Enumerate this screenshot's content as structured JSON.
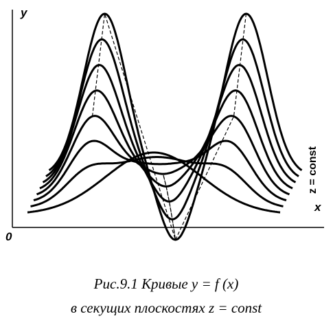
{
  "axes": {
    "y_label": "y",
    "x_label": "x",
    "origin_label": "0",
    "z_label": "z = const"
  },
  "caption": {
    "line1": "Рис.9.1 Кривые y = f (x)",
    "line2": "в секущих плоскостях z = const"
  }
}
